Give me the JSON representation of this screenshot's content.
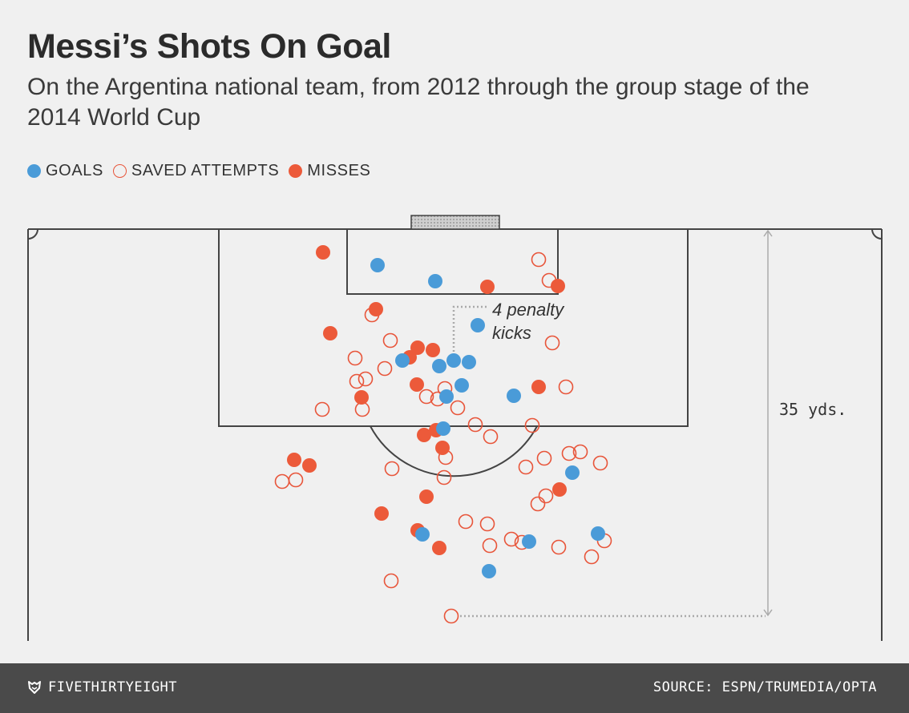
{
  "title": "Messi’s Shots On Goal",
  "subtitle": "On the Argentina national team, from 2012 through the group stage of the 2014 World Cup",
  "legend": [
    {
      "label": "GOALS",
      "kind": "goal"
    },
    {
      "label": "SAVED ATTEMPTS",
      "kind": "saved"
    },
    {
      "label": "MISSES",
      "kind": "miss"
    }
  ],
  "colors": {
    "goal": "#4a9bd8",
    "miss": "#ec5a3a",
    "saved": "#e8553a",
    "penalty_goal": "#2a7fd0",
    "lines": "#444444",
    "background": "#f0f0f0",
    "footer": "#4a4a4a"
  },
  "annotations": {
    "penalty": [
      "4 penalty",
      "kicks"
    ],
    "distance": "35 yds."
  },
  "footer": {
    "brand": "FIVETHIRTYEIGHT",
    "source": "SOURCE: ESPN/TRUMEDIA/OPTA"
  },
  "chart_data": {
    "type": "scatter",
    "title": "Messi’s Shots On Goal",
    "subtitle": "On the Argentina national team, from 2012 through the group stage of the 2014 World Cup",
    "xlabel": "",
    "ylabel": "",
    "legend_position": "top-left",
    "grid": false,
    "series": [
      {
        "name": "GOALS",
        "kind": "goal",
        "points": [
          [
            471,
            331
          ],
          [
            543,
            351
          ],
          [
            596,
            406
          ],
          [
            502,
            450
          ],
          [
            548,
            457
          ],
          [
            566,
            450
          ],
          [
            585,
            452
          ],
          [
            576,
            481
          ],
          [
            557,
            495
          ],
          [
            641,
            494
          ],
          [
            553,
            535
          ],
          [
            714,
            590
          ],
          [
            527,
            667
          ],
          [
            660,
            676
          ],
          [
            746,
            666
          ],
          [
            610,
            713
          ]
        ]
      },
      {
        "name": "SAVED ATTEMPTS",
        "kind": "saved",
        "points": [
          [
            672,
            324
          ],
          [
            685,
            350
          ],
          [
            464,
            393
          ],
          [
            487,
            425
          ],
          [
            689,
            428
          ],
          [
            443,
            447
          ],
          [
            480,
            460
          ],
          [
            456,
            473
          ],
          [
            445,
            476
          ],
          [
            555,
            485
          ],
          [
            532,
            495
          ],
          [
            546,
            498
          ],
          [
            706,
            483
          ],
          [
            402,
            511
          ],
          [
            452,
            511
          ],
          [
            571,
            509
          ],
          [
            593,
            530
          ],
          [
            664,
            531
          ],
          [
            612,
            545
          ],
          [
            556,
            571
          ],
          [
            489,
            585
          ],
          [
            656,
            583
          ],
          [
            679,
            572
          ],
          [
            710,
            566
          ],
          [
            724,
            564
          ],
          [
            749,
            578
          ],
          [
            554,
            596
          ],
          [
            369,
            599
          ],
          [
            352,
            601
          ],
          [
            681,
            619
          ],
          [
            671,
            629
          ],
          [
            581,
            651
          ],
          [
            608,
            654
          ],
          [
            638,
            673
          ],
          [
            651,
            677
          ],
          [
            611,
            681
          ],
          [
            697,
            683
          ],
          [
            754,
            675
          ],
          [
            738,
            695
          ],
          [
            488,
            725
          ],
          [
            563,
            769
          ]
        ]
      },
      {
        "name": "MISSES",
        "kind": "miss",
        "points": [
          [
            403,
            315
          ],
          [
            608,
            358
          ],
          [
            696,
            357
          ],
          [
            469,
            386
          ],
          [
            412,
            416
          ],
          [
            521,
            434
          ],
          [
            540,
            437
          ],
          [
            511,
            446
          ],
          [
            520,
            480
          ],
          [
            672,
            483
          ],
          [
            451,
            496
          ],
          [
            529,
            543
          ],
          [
            544,
            537
          ],
          [
            552,
            559
          ],
          [
            367,
            574
          ],
          [
            386,
            581
          ],
          [
            532,
            620
          ],
          [
            698,
            611
          ],
          [
            476,
            641
          ],
          [
            521,
            662
          ],
          [
            548,
            684
          ]
        ]
      }
    ]
  }
}
